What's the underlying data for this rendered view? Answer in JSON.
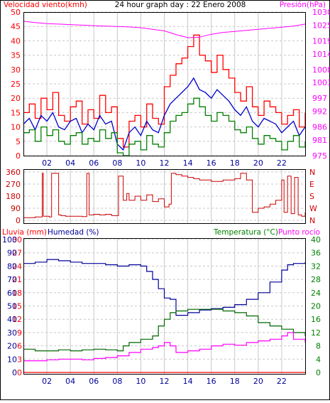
{
  "colors": {
    "background": "#ffffff",
    "frame": "#000000",
    "grid": "#c8c8c8",
    "wind_speed": "#ff0000",
    "wind_avg": "#0000cc",
    "wind_min": "#008000",
    "pressure": "#ff00ff",
    "wind_dir": "#cc0000",
    "rain": "#ff0000",
    "humidity": "#000099",
    "temperature": "#006600",
    "dewpoint": "#ff00ff"
  },
  "chart_data": [
    {
      "type": "line",
      "title": "24 hour graph day : 22 Enero 2008",
      "left_axis_title": "Velocidad viento(kmh)",
      "right_axis_title": "Presión(hPa)",
      "ylim_left": [
        0,
        50
      ],
      "yticks_left": [
        "0",
        "5",
        "10",
        "15",
        "20",
        "25",
        "30",
        "35",
        "40",
        "45",
        "50"
      ],
      "ylim_right": [
        975,
        1030
      ],
      "yticks_right": [
        "975",
        "981",
        "986",
        "992",
        "997",
        "1003",
        "1008",
        "1014",
        "1019",
        "1025",
        "1030"
      ],
      "x_range": [
        0,
        24
      ],
      "xticks": [
        "02",
        "04",
        "06",
        "08",
        "10",
        "12",
        "14",
        "16",
        "18",
        "20",
        "22"
      ],
      "grid": true,
      "series": [
        {
          "key": "wind_speed",
          "axis": "left",
          "step": true,
          "x": [
            0,
            0.5,
            1,
            1.5,
            2,
            2.5,
            3,
            3.5,
            4,
            4.5,
            5,
            5.5,
            6,
            6.5,
            7,
            7.5,
            8,
            8.5,
            9,
            9.5,
            10,
            10.5,
            11,
            11.5,
            12,
            12.5,
            13,
            13.5,
            14,
            14.5,
            15,
            15.5,
            16,
            16.5,
            17,
            17.5,
            18,
            18.5,
            19,
            19.5,
            20,
            20.5,
            21,
            21.5,
            22,
            22.5,
            23,
            23.5,
            24
          ],
          "values": [
            15,
            18,
            13,
            20,
            16,
            22,
            14,
            12,
            17,
            19,
            11,
            16,
            13,
            21,
            15,
            17,
            6,
            3,
            12,
            14,
            10,
            18,
            13,
            11,
            24,
            28,
            32,
            34,
            38,
            42,
            35,
            33,
            29,
            35,
            30,
            27,
            22,
            19,
            24,
            17,
            14,
            19,
            17,
            15,
            11,
            14,
            16,
            10,
            15
          ]
        },
        {
          "key": "wind_avg",
          "axis": "left",
          "step": false,
          "x": [
            0,
            0.5,
            1,
            1.5,
            2,
            2.5,
            3,
            3.5,
            4,
            4.5,
            5,
            5.5,
            6,
            6.5,
            7,
            7.5,
            8,
            8.5,
            9,
            9.5,
            10,
            10.5,
            11,
            11.5,
            12,
            12.5,
            13,
            13.5,
            14,
            14.5,
            15,
            15.5,
            16,
            16.5,
            17,
            17.5,
            18,
            18.5,
            19,
            19.5,
            20,
            20.5,
            21,
            21.5,
            22,
            22.5,
            23,
            23.5,
            24
          ],
          "values": [
            11,
            13,
            9,
            14,
            12,
            15,
            10,
            9,
            12,
            13,
            8,
            11,
            9,
            14,
            11,
            12,
            4,
            2,
            8,
            10,
            7,
            12,
            9,
            8,
            14,
            18,
            20,
            22,
            24,
            27,
            23,
            22,
            20,
            23,
            21,
            19,
            16,
            14,
            17,
            12,
            10,
            13,
            12,
            11,
            8,
            10,
            12,
            7,
            10
          ]
        },
        {
          "key": "wind_min",
          "axis": "left",
          "step": true,
          "x": [
            0,
            0.5,
            1,
            1.5,
            2,
            2.5,
            3,
            3.5,
            4,
            4.5,
            5,
            5.5,
            6,
            6.5,
            7,
            7.5,
            8,
            8.5,
            9,
            9.5,
            10,
            10.5,
            11,
            11.5,
            12,
            12.5,
            13,
            13.5,
            14,
            14.5,
            15,
            15.5,
            16,
            16.5,
            17,
            17.5,
            18,
            18.5,
            19,
            19.5,
            20,
            20.5,
            21,
            21.5,
            22,
            22.5,
            23,
            23.5,
            24
          ],
          "values": [
            8,
            9,
            5,
            10,
            7,
            9,
            5,
            4,
            7,
            8,
            4,
            6,
            5,
            9,
            6,
            8,
            1,
            0,
            4,
            5,
            2,
            7,
            4,
            3,
            8,
            12,
            14,
            15,
            18,
            20,
            17,
            14,
            12,
            15,
            14,
            12,
            9,
            8,
            10,
            6,
            4,
            7,
            6,
            5,
            2,
            5,
            7,
            3,
            5
          ]
        },
        {
          "key": "pressure",
          "axis": "right",
          "step": false,
          "x": [
            0,
            1,
            2,
            3,
            4,
            5,
            6,
            7,
            8,
            9,
            10,
            11,
            12,
            13,
            14,
            15,
            16,
            17,
            18,
            19,
            20,
            21,
            22,
            23,
            24
          ],
          "values": [
            1026.5,
            1026.0,
            1025.6,
            1025.4,
            1025.2,
            1025.0,
            1024.8,
            1024.6,
            1024.5,
            1024.3,
            1024.0,
            1023.4,
            1022.8,
            1021.4,
            1020.2,
            1020.4,
            1021.5,
            1022.2,
            1022.6,
            1023.0,
            1023.4,
            1023.8,
            1024.2,
            1024.6,
            1025.4
          ]
        }
      ]
    },
    {
      "type": "line",
      "ylim": [
        0,
        360
      ],
      "yticks": [
        "0",
        "90",
        "180",
        "270",
        "360"
      ],
      "right_labels": [
        "N",
        "W",
        "S",
        "E",
        "N"
      ],
      "x_range": [
        0,
        24
      ],
      "grid": true,
      "series": [
        {
          "key": "wind_dir",
          "step": true,
          "x": [
            0,
            1.0,
            1.6,
            1.7,
            2.2,
            2.4,
            3.0,
            3.2,
            3.6,
            5.0,
            5.4,
            5.6,
            6.0,
            6.5,
            7.0,
            7.5,
            8.0,
            8.1,
            8.5,
            8.8,
            9.0,
            9.5,
            10.0,
            10.5,
            11.0,
            11.5,
            12.0,
            12.4,
            12.6,
            13.0,
            13.5,
            14.0,
            14.5,
            15.0,
            16.0,
            17.0,
            18.0,
            18.5,
            19.0,
            19.5,
            20.0,
            20.5,
            21.0,
            21.5,
            22.0,
            22.2,
            22.5,
            22.8,
            23.1,
            23.4,
            23.7,
            24.0
          ],
          "values": [
            20,
            25,
            350,
            30,
            25,
            350,
            40,
            35,
            30,
            28,
            350,
            40,
            45,
            40,
            45,
            35,
            35,
            330,
            150,
            200,
            150,
            180,
            150,
            190,
            140,
            160,
            100,
            120,
            350,
            340,
            330,
            320,
            310,
            300,
            290,
            300,
            310,
            350,
            300,
            60,
            90,
            100,
            120,
            150,
            300,
            60,
            330,
            50,
            320,
            40,
            30,
            60
          ]
        }
      ]
    },
    {
      "type": "line",
      "left_axis_title_1": "Lluvia (mm)",
      "left_axis_title_2": "Humedad (%)",
      "right_axis_title_1": "Temperatura (°C)",
      "right_axis_title_2": "Punto rocío",
      "ylim_rain": [
        0,
        30
      ],
      "yticks_rain": [
        "0",
        "3",
        "6",
        "9",
        "12",
        "15",
        "18",
        "21",
        "24",
        "27",
        "30"
      ],
      "ylim_humidity": [
        0,
        100
      ],
      "yticks_humidity": [
        "0",
        "10",
        "20",
        "30",
        "40",
        "50",
        "60",
        "70",
        "80",
        "90",
        "100"
      ],
      "ylim_temp": [
        0,
        40
      ],
      "yticks_temp": [
        "0",
        "4",
        "8",
        "12",
        "16",
        "20",
        "24",
        "28",
        "32",
        "36",
        "40"
      ],
      "x_range": [
        0,
        24
      ],
      "xticks": [
        "02",
        "04",
        "06",
        "08",
        "10",
        "12",
        "14",
        "16",
        "18",
        "20",
        "22"
      ],
      "grid": true,
      "series": [
        {
          "key": "humidity",
          "axis": "humidity",
          "step": true,
          "x": [
            0,
            1,
            2,
            3,
            4,
            5,
            6,
            7,
            8,
            9,
            10,
            10.5,
            11,
            11.5,
            12,
            12.5,
            13,
            14,
            15,
            16,
            17,
            18,
            19,
            20,
            21,
            22,
            22.5,
            23,
            24
          ],
          "values": [
            82,
            83,
            85,
            84,
            83,
            82,
            82,
            81,
            80,
            81,
            80,
            76,
            70,
            63,
            56,
            55,
            43,
            45,
            47,
            48,
            49,
            51,
            55,
            60,
            68,
            77,
            81,
            82,
            83
          ]
        },
        {
          "key": "temperature",
          "axis": "temp",
          "step": true,
          "x": [
            0,
            1,
            2,
            3,
            4,
            5,
            6,
            7,
            8,
            8.5,
            9,
            10,
            11,
            11.5,
            12,
            12.5,
            13,
            14,
            15,
            16,
            17,
            18,
            19,
            20,
            21,
            22,
            23,
            24
          ],
          "values": [
            7,
            6.5,
            6.5,
            6.8,
            6.5,
            6.8,
            7,
            6.8,
            6.5,
            8,
            9,
            10,
            11,
            14,
            16,
            18,
            18.5,
            19,
            19,
            19,
            18.5,
            18,
            17,
            15,
            14,
            13,
            12,
            11
          ]
        },
        {
          "key": "dewpoint",
          "axis": "temp",
          "step": true,
          "x": [
            0,
            1,
            2,
            3,
            4,
            5,
            6,
            7,
            8,
            9,
            10,
            11,
            11.5,
            12,
            12.5,
            13,
            14,
            15,
            16,
            17,
            18,
            19,
            20,
            21,
            22,
            22.5,
            23,
            24
          ],
          "values": [
            3.5,
            3.5,
            3.8,
            4,
            4,
            3.8,
            4.2,
            4.5,
            5,
            6,
            7,
            7.5,
            8,
            9,
            8,
            6,
            6.5,
            7,
            8,
            8.5,
            8.2,
            9,
            9.5,
            10,
            11,
            12,
            10,
            9
          ]
        },
        {
          "key": "rain",
          "axis": "rain",
          "step": true,
          "x": [
            0,
            24
          ],
          "values": [
            0,
            0
          ]
        }
      ]
    }
  ]
}
